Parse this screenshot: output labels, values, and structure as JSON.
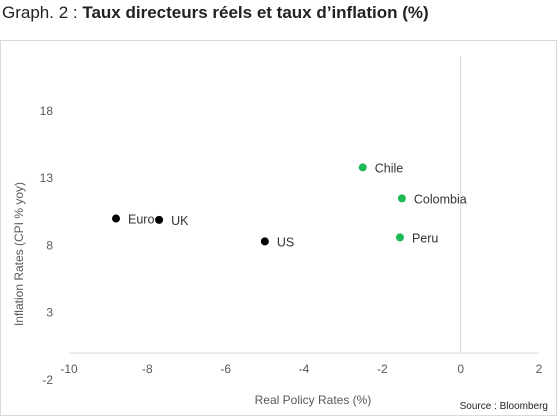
{
  "title": {
    "prefix": "Graph. 2 : ",
    "main": "Taux directeurs réels et taux d’inflation (%)"
  },
  "source": "Source : Bloomberg",
  "colors": {
    "advanced": "#000000",
    "emerging": "#1db954",
    "axis": "#d9d9d9"
  },
  "chart_data": {
    "type": "scatter",
    "title": "Taux directeurs réels et taux d’inflation (%)",
    "xlabel": "Real Policy Rates (%)",
    "ylabel": "Inflation Rates (CPI % yoy)",
    "xlim": [
      -10,
      2
    ],
    "ylim": [
      -2,
      20
    ],
    "x_ticks": [
      -10,
      -8,
      -6,
      -4,
      -2,
      0,
      2
    ],
    "y_ticks": [
      -2,
      3,
      8,
      13,
      18
    ],
    "grid": false,
    "points": [
      {
        "label": "Euro",
        "x": -8.8,
        "y": 10.0,
        "group": "advanced"
      },
      {
        "label": "UK",
        "x": -7.7,
        "y": 9.9,
        "group": "advanced"
      },
      {
        "label": "US",
        "x": -5.0,
        "y": 8.3,
        "group": "advanced"
      },
      {
        "label": "Chile",
        "x": -2.5,
        "y": 13.8,
        "group": "emerging"
      },
      {
        "label": "Colombia",
        "x": -1.5,
        "y": 11.5,
        "group": "emerging"
      },
      {
        "label": "Peru",
        "x": -1.55,
        "y": 8.6,
        "group": "emerging"
      }
    ]
  }
}
